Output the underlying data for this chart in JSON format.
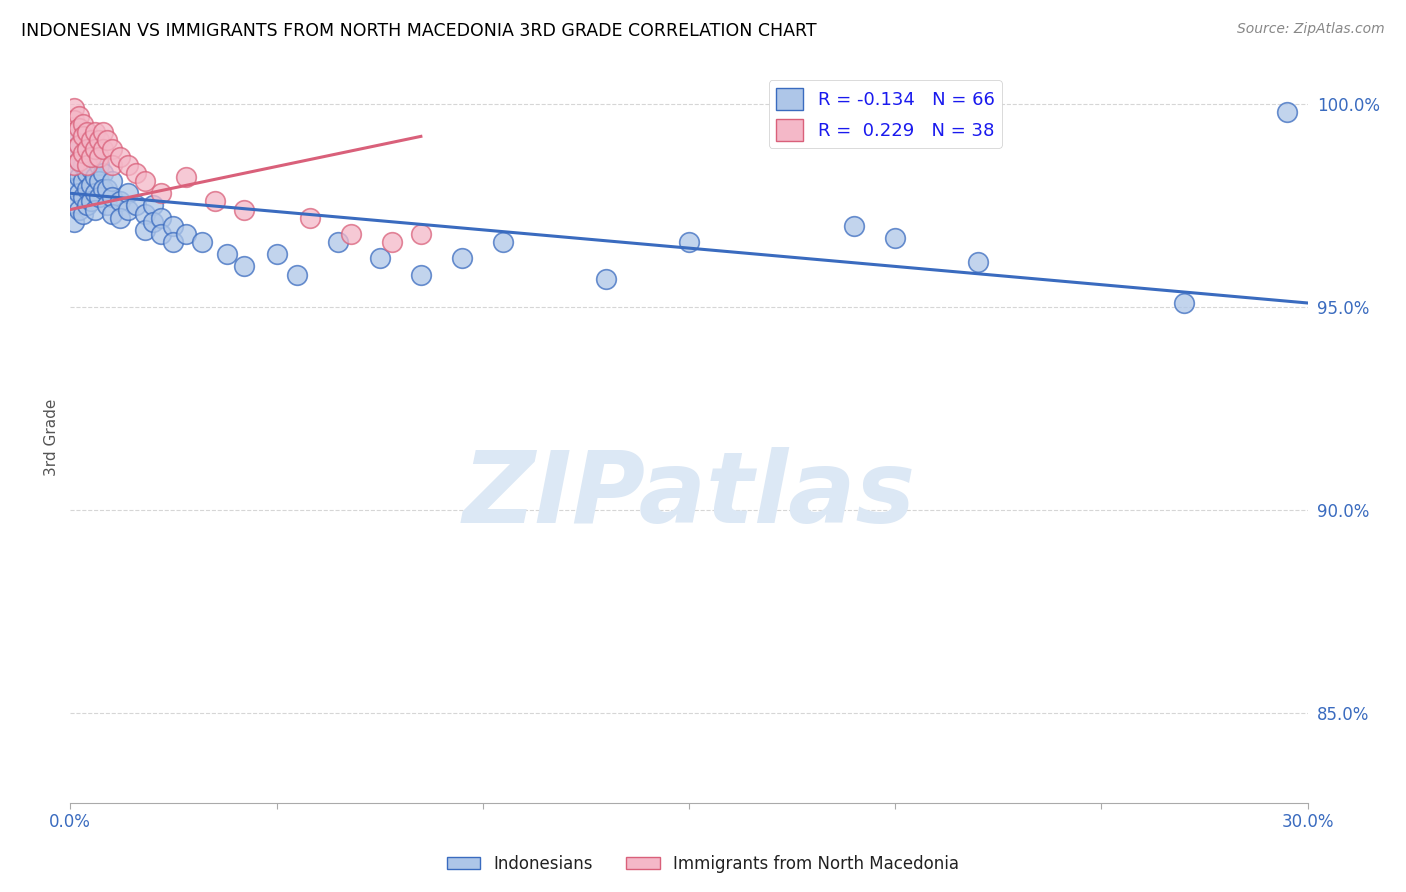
{
  "title": "INDONESIAN VS IMMIGRANTS FROM NORTH MACEDONIA 3RD GRADE CORRELATION CHART",
  "source": "Source: ZipAtlas.com",
  "ylabel": "3rd Grade",
  "xlim": [
    0.0,
    0.3
  ],
  "ylim": [
    0.828,
    1.008
  ],
  "yticks": [
    0.85,
    0.9,
    0.95,
    1.0
  ],
  "ytick_labels": [
    "85.0%",
    "90.0%",
    "95.0%",
    "100.0%"
  ],
  "R_indonesian": -0.134,
  "N_indonesian": 66,
  "R_macedonian": 0.229,
  "N_macedonian": 38,
  "legend_labels": [
    "Indonesians",
    "Immigrants from North Macedonia"
  ],
  "color_indonesian": "#aec6e8",
  "color_macedonian": "#f4b8c8",
  "line_color_indonesian": "#3a6bbf",
  "line_color_macedonian": "#d9607a",
  "watermark_color": "#dce8f5",
  "ind_x": [
    0.001,
    0.001,
    0.001,
    0.001,
    0.001,
    0.001,
    0.002,
    0.002,
    0.002,
    0.002,
    0.002,
    0.003,
    0.003,
    0.003,
    0.003,
    0.004,
    0.004,
    0.004,
    0.005,
    0.005,
    0.005,
    0.005,
    0.006,
    0.006,
    0.006,
    0.007,
    0.007,
    0.007,
    0.008,
    0.008,
    0.009,
    0.009,
    0.01,
    0.01,
    0.01,
    0.012,
    0.012,
    0.014,
    0.014,
    0.016,
    0.018,
    0.018,
    0.02,
    0.02,
    0.022,
    0.022,
    0.025,
    0.025,
    0.028,
    0.032,
    0.038,
    0.042,
    0.05,
    0.055,
    0.065,
    0.075,
    0.085,
    0.095,
    0.105,
    0.13,
    0.15,
    0.19,
    0.2,
    0.22,
    0.27,
    0.295
  ],
  "ind_y": [
    0.992,
    0.988,
    0.984,
    0.979,
    0.975,
    0.971,
    0.99,
    0.986,
    0.982,
    0.978,
    0.974,
    0.985,
    0.981,
    0.977,
    0.973,
    0.983,
    0.979,
    0.975,
    0.988,
    0.984,
    0.98,
    0.976,
    0.982,
    0.978,
    0.974,
    0.985,
    0.981,
    0.977,
    0.983,
    0.979,
    0.979,
    0.975,
    0.981,
    0.977,
    0.973,
    0.976,
    0.972,
    0.978,
    0.974,
    0.975,
    0.973,
    0.969,
    0.975,
    0.971,
    0.972,
    0.968,
    0.97,
    0.966,
    0.968,
    0.966,
    0.963,
    0.96,
    0.963,
    0.958,
    0.966,
    0.962,
    0.958,
    0.962,
    0.966,
    0.957,
    0.966,
    0.97,
    0.967,
    0.961,
    0.951,
    0.998
  ],
  "mac_x": [
    0.001,
    0.001,
    0.001,
    0.001,
    0.001,
    0.002,
    0.002,
    0.002,
    0.002,
    0.003,
    0.003,
    0.003,
    0.004,
    0.004,
    0.004,
    0.005,
    0.005,
    0.006,
    0.006,
    0.007,
    0.007,
    0.008,
    0.008,
    0.009,
    0.01,
    0.01,
    0.012,
    0.014,
    0.016,
    0.018,
    0.022,
    0.028,
    0.035,
    0.042,
    0.058,
    0.068,
    0.078,
    0.085
  ],
  "mac_y": [
    0.999,
    0.996,
    0.993,
    0.989,
    0.985,
    0.997,
    0.994,
    0.99,
    0.986,
    0.995,
    0.992,
    0.988,
    0.993,
    0.989,
    0.985,
    0.991,
    0.987,
    0.993,
    0.989,
    0.991,
    0.987,
    0.993,
    0.989,
    0.991,
    0.989,
    0.985,
    0.987,
    0.985,
    0.983,
    0.981,
    0.978,
    0.982,
    0.976,
    0.974,
    0.972,
    0.968,
    0.966,
    0.968
  ],
  "ind_trend_x0": 0.0,
  "ind_trend_x1": 0.3,
  "ind_trend_y0": 0.978,
  "ind_trend_y1": 0.951,
  "mac_trend_x0": 0.0,
  "mac_trend_x1": 0.085,
  "mac_trend_y0": 0.974,
  "mac_trend_y1": 0.992
}
